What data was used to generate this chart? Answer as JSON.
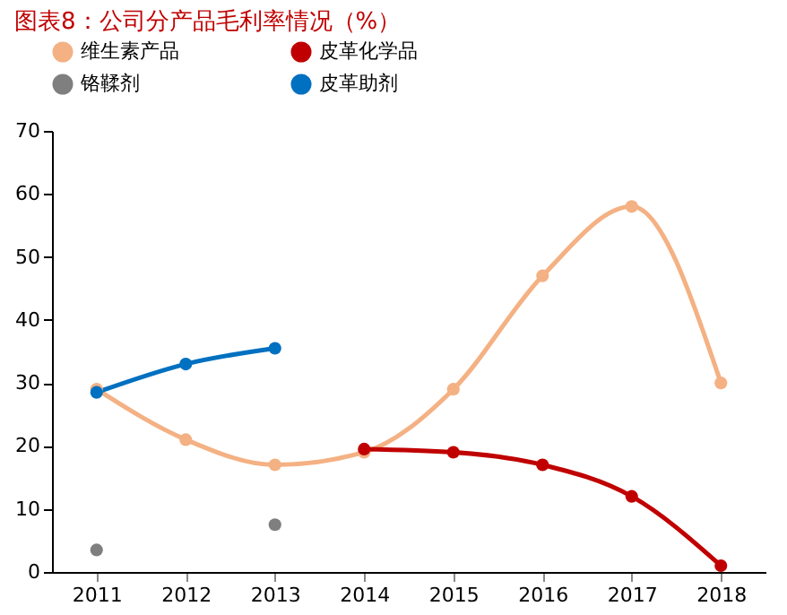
{
  "chart_data": {
    "type": "line",
    "title": "图表8：公司分产品毛利率情况（%）",
    "categories": [
      "2011",
      "2012",
      "2013",
      "2014",
      "2015",
      "2016",
      "2017",
      "2018"
    ],
    "series": [
      {
        "name": "维生素产品",
        "color": "#f4b183",
        "values": [
          29,
          21,
          17,
          19,
          29,
          47,
          58,
          30
        ]
      },
      {
        "name": "皮革化学品",
        "color": "#c00000",
        "values": [
          null,
          null,
          null,
          19.5,
          19,
          17,
          12,
          1
        ]
      },
      {
        "name": "铬鞣剂",
        "color": "#7f7f7f",
        "type": "scatter",
        "values": [
          3.5,
          null,
          7.5,
          null,
          null,
          null,
          null,
          null
        ]
      },
      {
        "name": "皮革助剂",
        "color": "#0070c0",
        "values": [
          28.5,
          33,
          35.5,
          null,
          null,
          null,
          null,
          null
        ]
      }
    ],
    "ylim": [
      0,
      70
    ],
    "yticks": [
      0,
      10,
      20,
      30,
      40,
      50,
      60,
      70
    ],
    "grid": false,
    "legend": "top",
    "marker": "circle",
    "line_style": "solid"
  }
}
